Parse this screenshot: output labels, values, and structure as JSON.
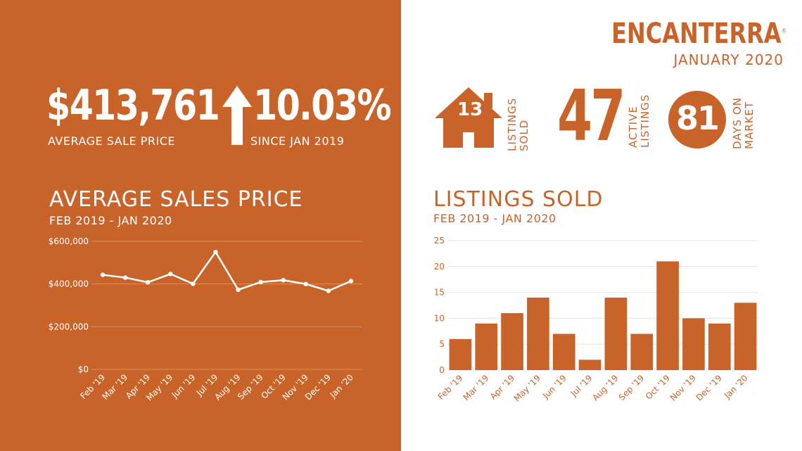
{
  "colors": {
    "accent": "#c8642a",
    "white": "#ffffff"
  },
  "header": {
    "brand": "ENCANTERRA",
    "brand_mark": "®",
    "month": "JANUARY 2020"
  },
  "kpis": {
    "avg_sale_price": {
      "value": "$413,761",
      "label": "AVERAGE  SALE PRICE"
    },
    "change": {
      "value": "10.03%",
      "label": "SINCE JAN 2019",
      "icon": "arrow-up-icon"
    },
    "listings_sold": {
      "value": "13",
      "label_line1": "LISTINGS",
      "label_line2": "SOLD",
      "icon": "house-icon"
    },
    "active_listings": {
      "value": "47",
      "label_line1": "ACTIVE",
      "label_line2": "LISTINGS"
    },
    "days_on_market": {
      "value": "81",
      "label_line1": "DAYS ON",
      "label_line2": "MARKET",
      "icon": "circle-icon"
    }
  },
  "chart_data": [
    {
      "type": "line",
      "title": "AVERAGE SALES PRICE",
      "subtitle": "FEB 2019 - JAN 2020",
      "categories": [
        "Feb '19",
        "Mar '19",
        "Apr '19",
        "May '19",
        "Jun '19",
        "Jul '19",
        "Aug '19",
        "Sep '19",
        "Oct '19",
        "Nov '19",
        "Dec '19",
        "Jan '20"
      ],
      "values": [
        443000,
        430000,
        408000,
        447000,
        401000,
        550000,
        373000,
        409000,
        418000,
        400000,
        368000,
        413761
      ],
      "ylim": [
        0,
        600000
      ],
      "yticks": [
        "$0",
        "$200,000",
        "$400,000",
        "$600,000"
      ],
      "ytick_values": [
        0,
        200000,
        400000,
        600000
      ],
      "grid": true
    },
    {
      "type": "bar",
      "title": "LISTINGS SOLD",
      "subtitle": "FEB 2019 - JAN 2020",
      "categories": [
        "Feb '19",
        "Mar '19",
        "Apr '19",
        "May '19",
        "Jun '19",
        "Jul '19",
        "Aug '19",
        "Sep '19",
        "Oct '19",
        "Nov '19",
        "Dec '19",
        "Jan '20"
      ],
      "values": [
        6,
        9,
        11,
        14,
        7,
        2,
        14,
        7,
        21,
        10,
        9,
        13
      ],
      "ylim": [
        0,
        25
      ],
      "yticks": [
        "0",
        "5",
        "10",
        "15",
        "20",
        "25"
      ],
      "ytick_values": [
        0,
        5,
        10,
        15,
        20,
        25
      ],
      "grid": true
    }
  ]
}
